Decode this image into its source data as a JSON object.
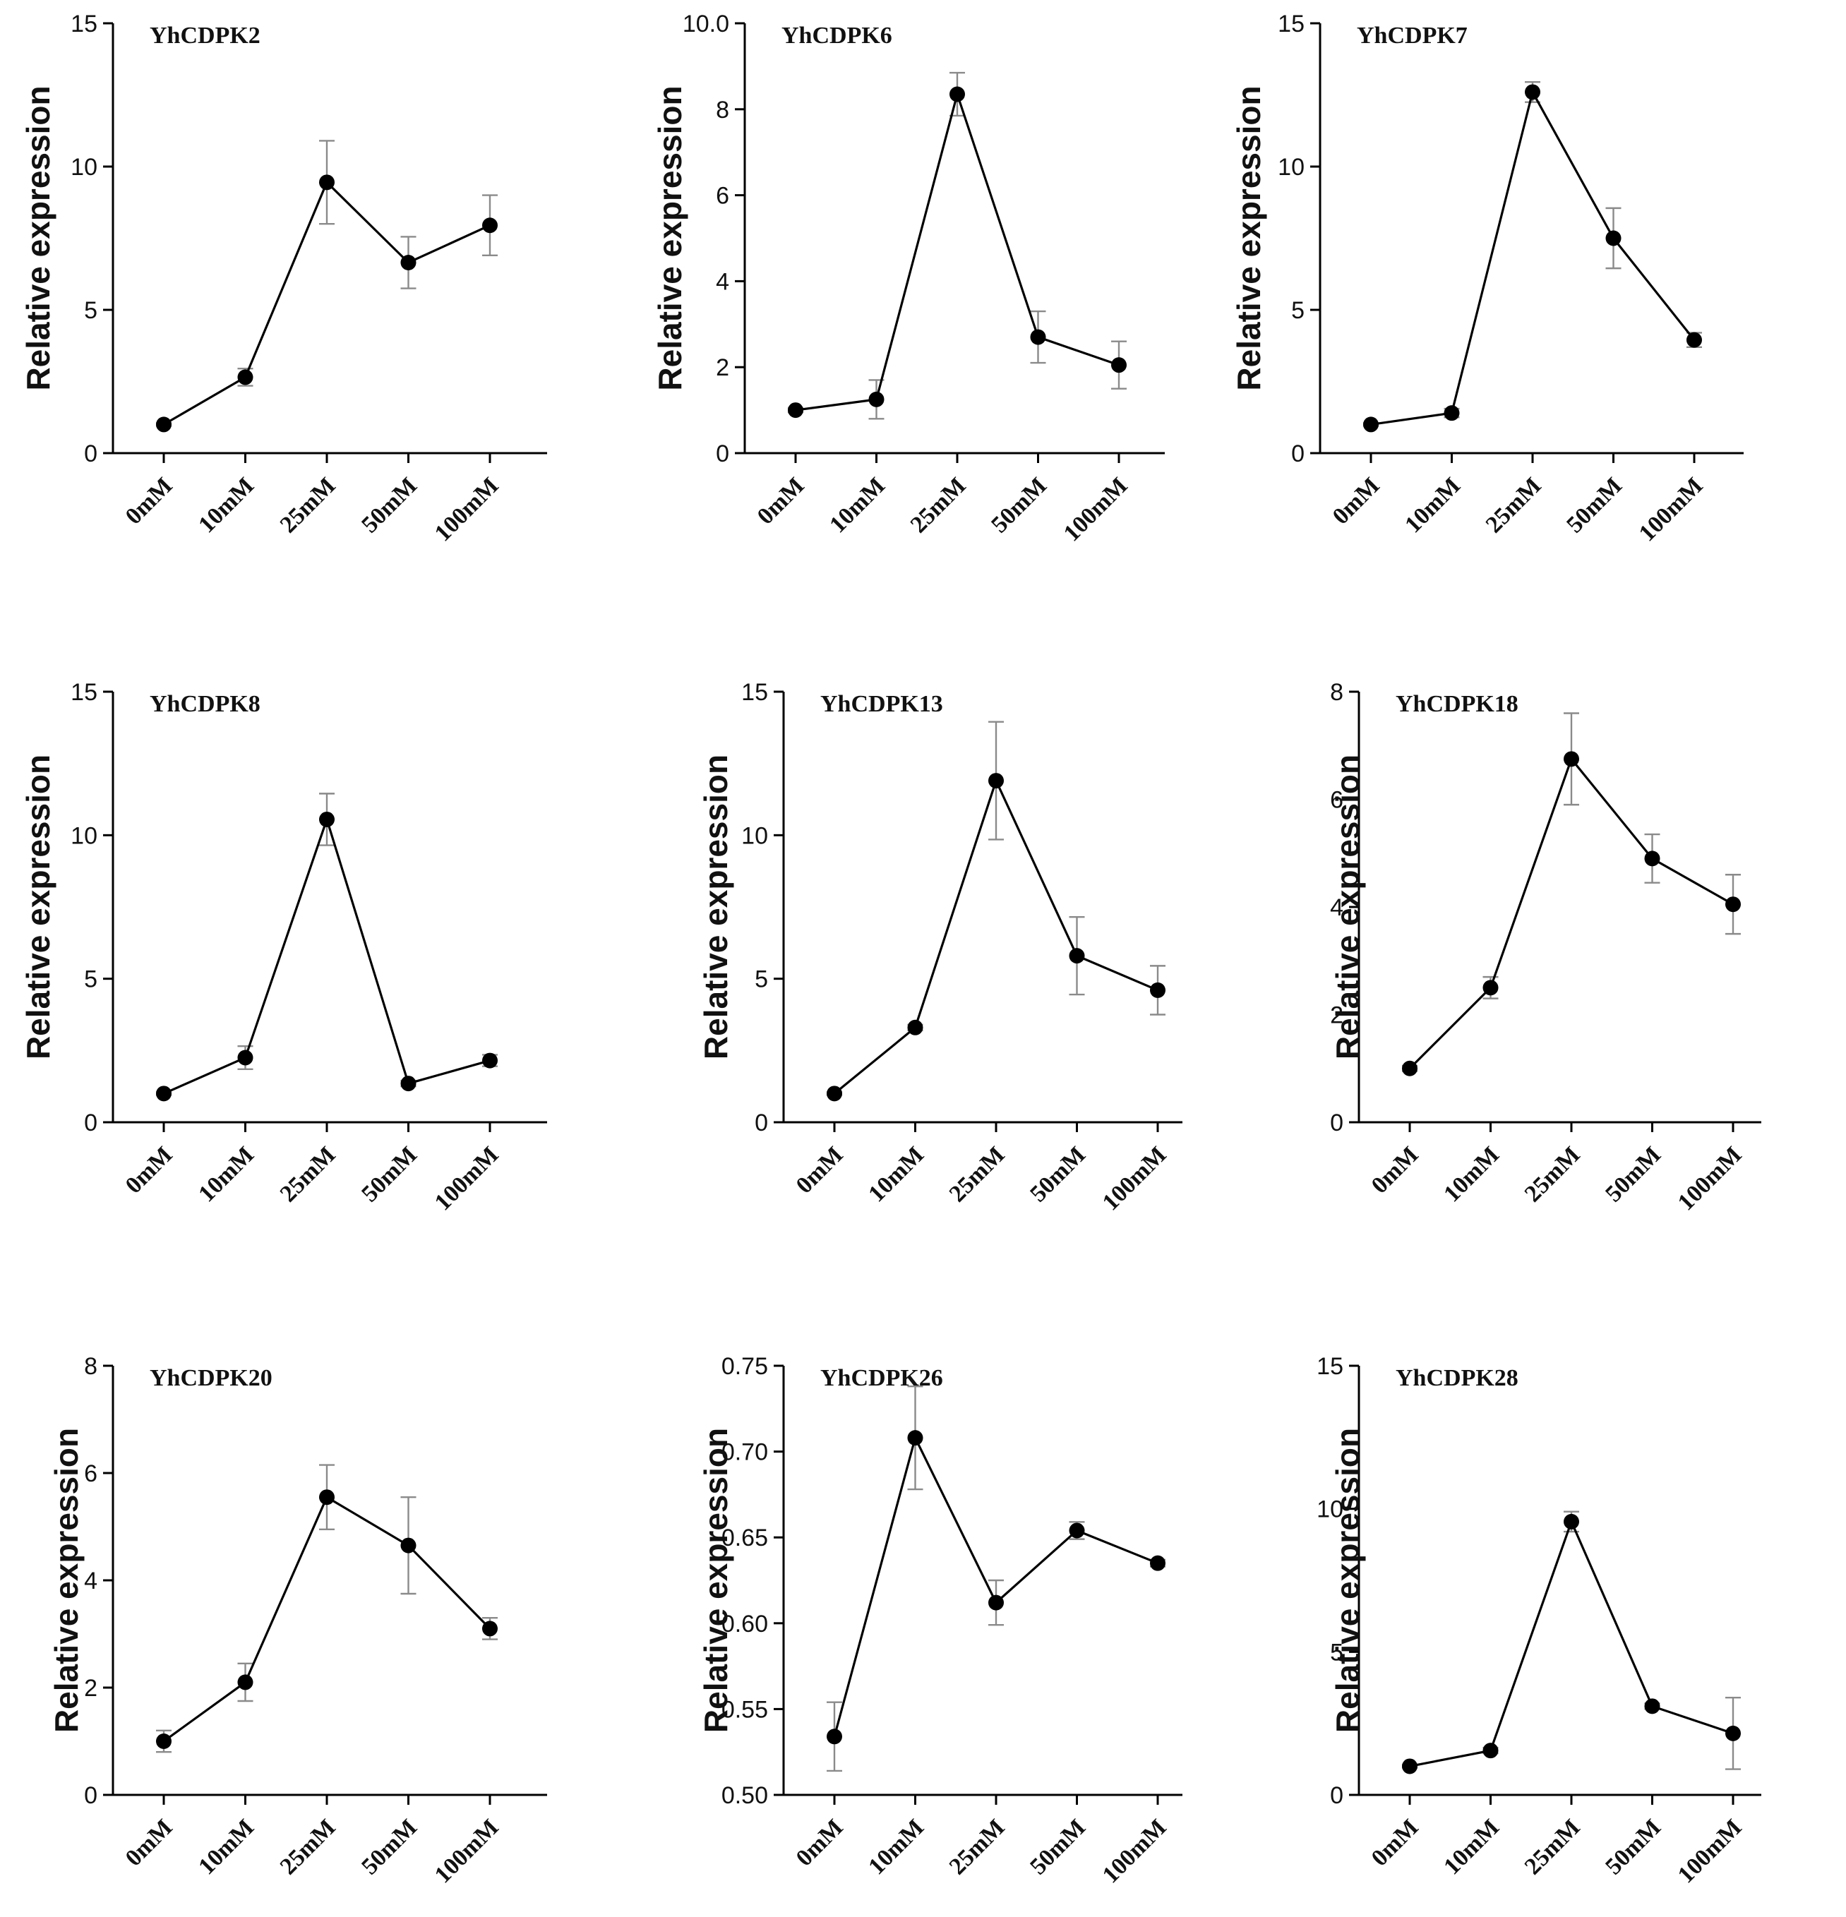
{
  "chart_data": [
    {
      "type": "line",
      "title": "YhCDPK2",
      "xlabel": "",
      "ylabel": "Relative expression",
      "categories": [
        "0mM",
        "10mM",
        "25mM",
        "50mM",
        "100mM"
      ],
      "values": [
        1.0,
        2.65,
        9.45,
        6.65,
        7.95
      ],
      "errors": [
        0.05,
        0.3,
        1.45,
        0.9,
        1.05
      ],
      "ylim": [
        0,
        15
      ],
      "yticks": [
        0,
        5,
        10,
        15
      ],
      "ytick_labels": [
        "0",
        "5",
        "10",
        "15"
      ]
    },
    {
      "type": "line",
      "title": "YhCDPK6",
      "xlabel": "",
      "ylabel": "Relative expression",
      "categories": [
        "0mM",
        "10mM",
        "25mM",
        "50mM",
        "100mM"
      ],
      "values": [
        1.0,
        1.25,
        8.35,
        2.7,
        2.05
      ],
      "errors": [
        0.05,
        0.45,
        0.5,
        0.6,
        0.55
      ],
      "ylim": [
        0,
        10
      ],
      "yticks": [
        0,
        2,
        4,
        6,
        8,
        10
      ],
      "ytick_labels": [
        "0",
        "2",
        "4",
        "6",
        "8",
        "10.0"
      ]
    },
    {
      "type": "line",
      "title": "YhCDPK7",
      "xlabel": "",
      "ylabel": "Relative expression",
      "categories": [
        "0mM",
        "10mM",
        "25mM",
        "50mM",
        "100mM"
      ],
      "values": [
        1.0,
        1.4,
        12.6,
        7.5,
        3.95
      ],
      "errors": [
        0.05,
        0.15,
        0.35,
        1.05,
        0.25
      ],
      "ylim": [
        0,
        15
      ],
      "yticks": [
        0,
        5,
        10,
        15
      ],
      "ytick_labels": [
        "0",
        "5",
        "10",
        "15"
      ]
    },
    {
      "type": "line",
      "title": "YhCDPK8",
      "xlabel": "",
      "ylabel": "Relative expression",
      "categories": [
        "0mM",
        "10mM",
        "25mM",
        "50mM",
        "100mM"
      ],
      "values": [
        1.0,
        2.25,
        10.55,
        1.35,
        2.15
      ],
      "errors": [
        0.05,
        0.4,
        0.9,
        0.1,
        0.2
      ],
      "ylim": [
        0,
        15
      ],
      "yticks": [
        0,
        5,
        10,
        15
      ],
      "ytick_labels": [
        "0",
        "5",
        "10",
        "15"
      ]
    },
    {
      "type": "line",
      "title": "YhCDPK13",
      "xlabel": "",
      "ylabel": "Relative expression",
      "categories": [
        "0mM",
        "10mM",
        "25mM",
        "50mM",
        "100mM"
      ],
      "values": [
        1.0,
        3.3,
        11.9,
        5.8,
        4.6
      ],
      "errors": [
        0.05,
        0.1,
        2.05,
        1.35,
        0.85
      ],
      "ylim": [
        0,
        15
      ],
      "yticks": [
        0,
        5,
        10,
        15
      ],
      "ytick_labels": [
        "0",
        "5",
        "10",
        "15"
      ]
    },
    {
      "type": "line",
      "title": "YhCDPK18",
      "xlabel": "",
      "ylabel": "Relative expression",
      "categories": [
        "0mM",
        "10mM",
        "25mM",
        "50mM",
        "100mM"
      ],
      "values": [
        1.0,
        2.5,
        6.75,
        4.9,
        4.05
      ],
      "errors": [
        0.05,
        0.2,
        0.85,
        0.45,
        0.55
      ],
      "ylim": [
        0,
        8
      ],
      "yticks": [
        0,
        2,
        4,
        6,
        8
      ],
      "ytick_labels": [
        "0",
        "2",
        "4",
        "6",
        "8"
      ]
    },
    {
      "type": "line",
      "title": "YhCDPK20",
      "xlabel": "",
      "ylabel": "Relative expression",
      "categories": [
        "0mM",
        "10mM",
        "25mM",
        "50mM",
        "100mM"
      ],
      "values": [
        1.0,
        2.1,
        5.55,
        4.65,
        3.1
      ],
      "errors": [
        0.2,
        0.35,
        0.6,
        0.9,
        0.2
      ],
      "ylim": [
        0,
        8
      ],
      "yticks": [
        0,
        2,
        4,
        6,
        8
      ],
      "ytick_labels": [
        "0",
        "2",
        "4",
        "6",
        "8"
      ]
    },
    {
      "type": "line",
      "title": "YhCDPK26",
      "xlabel": "",
      "ylabel": "Relative expression",
      "categories": [
        "0mM",
        "10mM",
        "25mM",
        "50mM",
        "100mM"
      ],
      "values": [
        0.534,
        0.708,
        0.612,
        0.654,
        0.635
      ],
      "errors": [
        0.02,
        0.03,
        0.013,
        0.005,
        0.002
      ],
      "ylim": [
        0.5,
        0.75
      ],
      "yticks": [
        0.5,
        0.55,
        0.6,
        0.65,
        0.7,
        0.75
      ],
      "ytick_labels": [
        "0.50",
        "0.55",
        "0.60",
        "0.65",
        "0.70",
        "0.75"
      ]
    },
    {
      "type": "line",
      "title": "YhCDPK28",
      "xlabel": "",
      "ylabel": "Relative expression",
      "categories": [
        "0mM",
        "10mM",
        "25mM",
        "50mM",
        "100mM"
      ],
      "values": [
        1.0,
        1.55,
        9.55,
        3.1,
        2.15
      ],
      "errors": [
        0.05,
        0.1,
        0.35,
        0.1,
        1.25
      ],
      "ylim": [
        0,
        15
      ],
      "yticks": [
        0,
        5,
        10,
        15
      ],
      "ytick_labels": [
        "0",
        "5",
        "10",
        "15"
      ]
    }
  ]
}
